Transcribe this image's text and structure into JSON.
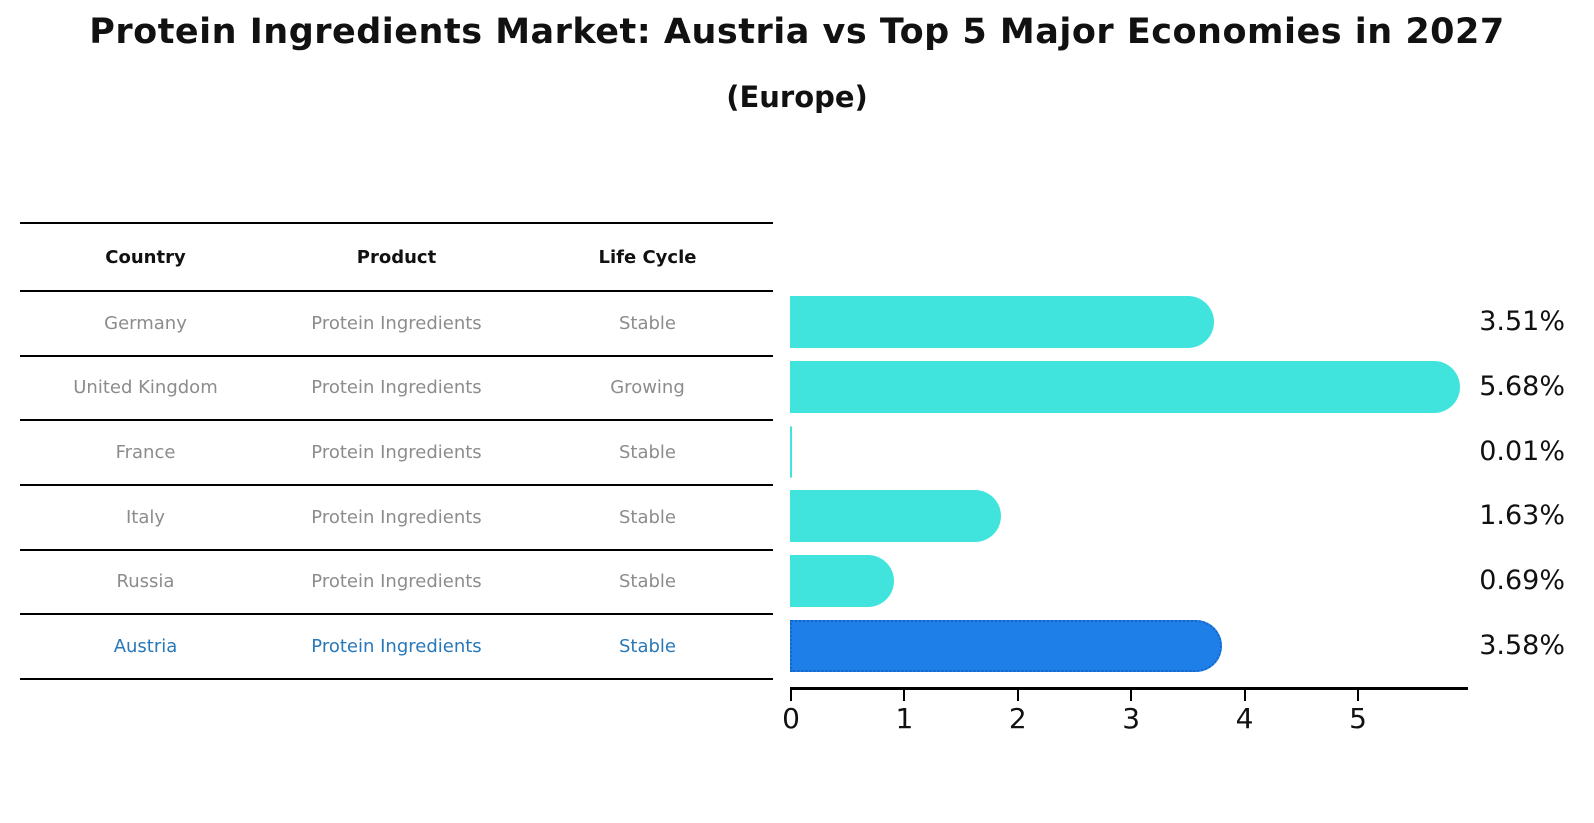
{
  "title": "Protein Ingredients Market: Austria vs Top 5 Major Economies in 2027",
  "subtitle": "(Europe)",
  "table": {
    "headers": [
      "Country",
      "Product",
      "Life Cycle"
    ],
    "rows": [
      {
        "country": "Germany",
        "product": "Protein Ingredients",
        "life_cycle": "Stable",
        "highlighted": false
      },
      {
        "country": "United Kingdom",
        "product": "Protein Ingredients",
        "life_cycle": "Growing",
        "highlighted": false
      },
      {
        "country": "France",
        "product": "Protein Ingredients",
        "life_cycle": "Stable",
        "highlighted": false
      },
      {
        "country": "Italy",
        "product": "Protein Ingredients",
        "life_cycle": "Stable",
        "highlighted": false
      },
      {
        "country": "Russia",
        "product": "Protein Ingredients",
        "life_cycle": "Stable",
        "highlighted": false
      },
      {
        "country": "Austria",
        "product": "Protein Ingredients",
        "life_cycle": "Stable",
        "highlighted": true
      }
    ]
  },
  "chart_data": {
    "type": "bar",
    "orientation": "horizontal",
    "title": "Protein Ingredients Market: Austria vs Top 5 Major Economies in 2027 (Europe)",
    "categories": [
      "Germany",
      "United Kingdom",
      "France",
      "Italy",
      "Russia",
      "Austria"
    ],
    "values": [
      3.51,
      5.68,
      0.01,
      1.63,
      0.69,
      3.58
    ],
    "value_labels": [
      "3.51%",
      "5.68%",
      "0.01%",
      "1.63%",
      "0.69%",
      "3.58%"
    ],
    "x_ticks": [
      "0",
      "1",
      "2",
      "3",
      "4",
      "5"
    ],
    "xlim": [
      0,
      5.97
    ],
    "grid": false,
    "legend": "none",
    "bar_color": "#40e4dd",
    "highlight_index": 5,
    "highlight_color": "#1f7fe8",
    "highlight_border_color": "#1566c8",
    "highlight_text_color": "#2878b8"
  }
}
